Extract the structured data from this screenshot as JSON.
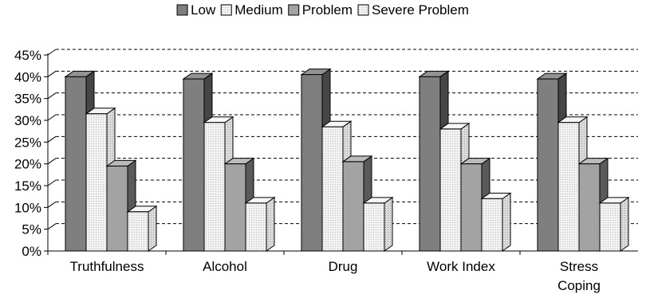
{
  "chart_data": {
    "type": "bar",
    "style": "3d-clustered-column",
    "categories": [
      "Truthfulness",
      "Alcohol",
      "Drug",
      "Work Index",
      "Stress Coping"
    ],
    "series": [
      {
        "name": "Low",
        "values": [
          40,
          39.5,
          40.5,
          40,
          39.5
        ],
        "color": "#7f7f7f",
        "pattern": "solid"
      },
      {
        "name": "Medium",
        "values": [
          31.5,
          29.5,
          28.5,
          28,
          29.5
        ],
        "color": "#ececec",
        "pattern": "dotted"
      },
      {
        "name": "Problem",
        "values": [
          19.5,
          20,
          20.5,
          20,
          20
        ],
        "color": "#a3a3a3",
        "pattern": "solid"
      },
      {
        "name": "Severe Problem",
        "values": [
          9,
          11,
          11,
          12,
          11
        ],
        "color": "#ececec",
        "pattern": "dotted"
      }
    ],
    "y_ticks": [
      "0%",
      "5%",
      "10%",
      "15%",
      "20%",
      "25%",
      "30%",
      "35%",
      "40%",
      "45%"
    ],
    "ylim": [
      0,
      45
    ],
    "y_step": 5,
    "grid": "dashed-horizontal",
    "legend_position": "top-center"
  }
}
